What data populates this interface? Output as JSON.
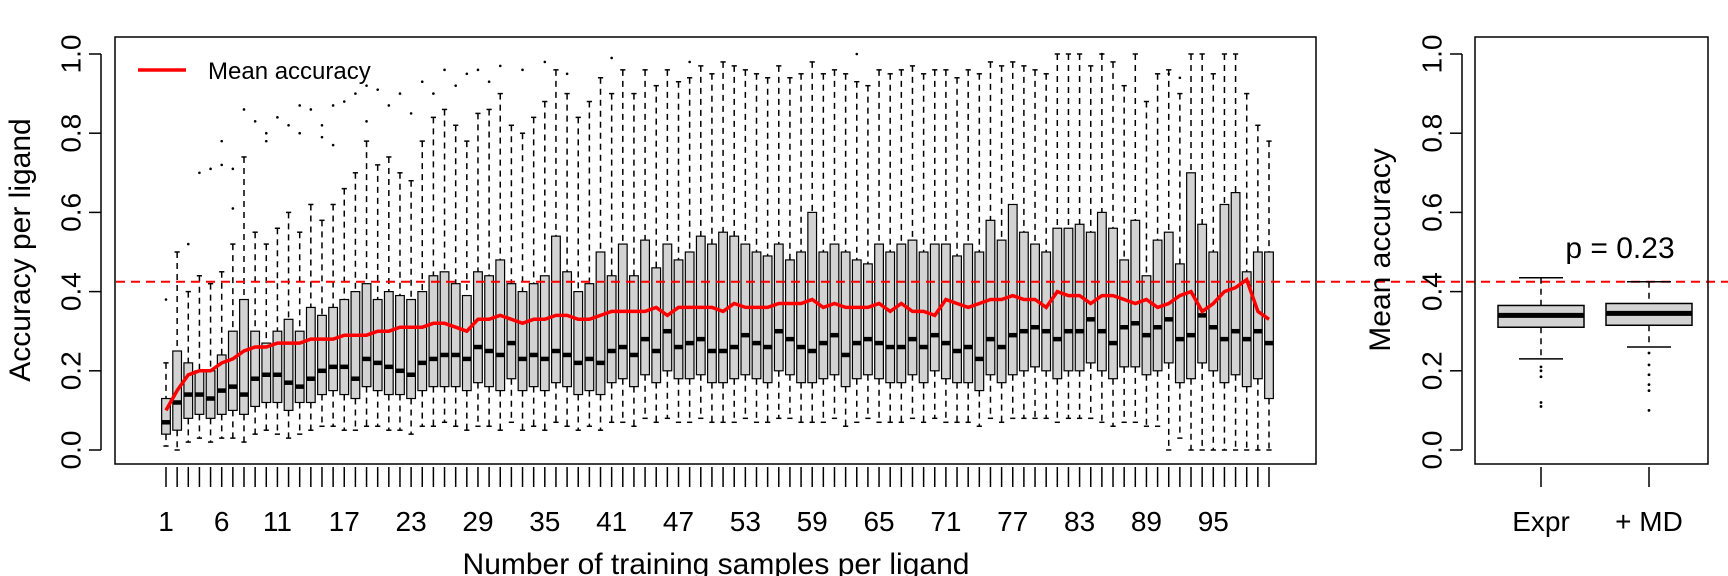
{
  "colors": {
    "box_fill": "#d3d3d3",
    "mean_line": "#ff0000",
    "ref_line": "#ff0000",
    "outline": "#000000"
  },
  "chart_data": [
    {
      "type": "box",
      "title": "",
      "xlabel": "Number of training samples per ligand",
      "ylabel": "Accuracy per ligand",
      "ylim": [
        0,
        1
      ],
      "yticks": [
        "0.0",
        "0.2",
        "0.4",
        "0.6",
        "0.8",
        "1.0"
      ],
      "xtick_labels": [
        "1",
        "6",
        "11",
        "17",
        "23",
        "29",
        "35",
        "41",
        "47",
        "53",
        "59",
        "65",
        "71",
        "77",
        "83",
        "89",
        "95"
      ],
      "x_range": [
        1,
        100
      ],
      "reference_line_y": 0.425,
      "legend": {
        "label": "Mean accuracy",
        "position": "top-left"
      },
      "medians": [
        0.07,
        0.12,
        0.14,
        0.14,
        0.13,
        0.15,
        0.16,
        0.14,
        0.18,
        0.19,
        0.19,
        0.17,
        0.16,
        0.18,
        0.2,
        0.21,
        0.21,
        0.18,
        0.23,
        0.22,
        0.21,
        0.2,
        0.19,
        0.22,
        0.23,
        0.24,
        0.24,
        0.23,
        0.26,
        0.25,
        0.24,
        0.27,
        0.23,
        0.24,
        0.23,
        0.25,
        0.24,
        0.22,
        0.23,
        0.22,
        0.25,
        0.26,
        0.24,
        0.28,
        0.25,
        0.3,
        0.26,
        0.27,
        0.28,
        0.25,
        0.25,
        0.26,
        0.29,
        0.27,
        0.26,
        0.3,
        0.28,
        0.26,
        0.25,
        0.27,
        0.29,
        0.24,
        0.27,
        0.28,
        0.27,
        0.26,
        0.26,
        0.28,
        0.26,
        0.29,
        0.27,
        0.25,
        0.26,
        0.23,
        0.28,
        0.26,
        0.29,
        0.3,
        0.31,
        0.3,
        0.28,
        0.3,
        0.3,
        0.33,
        0.3,
        0.27,
        0.31,
        0.32,
        0.29,
        0.31,
        0.33,
        0.28,
        0.29,
        0.34,
        0.31,
        0.28,
        0.3,
        0.28,
        0.3,
        0.27
      ],
      "q1": [
        0.04,
        0.05,
        0.08,
        0.09,
        0.08,
        0.09,
        0.1,
        0.09,
        0.11,
        0.12,
        0.12,
        0.1,
        0.12,
        0.12,
        0.14,
        0.15,
        0.14,
        0.13,
        0.16,
        0.15,
        0.14,
        0.14,
        0.13,
        0.15,
        0.16,
        0.16,
        0.16,
        0.15,
        0.17,
        0.16,
        0.15,
        0.18,
        0.15,
        0.16,
        0.15,
        0.17,
        0.16,
        0.14,
        0.15,
        0.14,
        0.17,
        0.18,
        0.16,
        0.19,
        0.17,
        0.2,
        0.18,
        0.18,
        0.19,
        0.17,
        0.17,
        0.18,
        0.19,
        0.18,
        0.17,
        0.2,
        0.19,
        0.17,
        0.17,
        0.18,
        0.19,
        0.16,
        0.18,
        0.19,
        0.18,
        0.17,
        0.17,
        0.19,
        0.17,
        0.2,
        0.18,
        0.17,
        0.17,
        0.15,
        0.19,
        0.17,
        0.19,
        0.2,
        0.21,
        0.2,
        0.18,
        0.2,
        0.2,
        0.22,
        0.2,
        0.18,
        0.21,
        0.21,
        0.19,
        0.2,
        0.22,
        0.17,
        0.18,
        0.22,
        0.2,
        0.17,
        0.19,
        0.16,
        0.18,
        0.13
      ],
      "q3": [
        0.13,
        0.25,
        0.22,
        0.2,
        0.2,
        0.24,
        0.3,
        0.38,
        0.3,
        0.27,
        0.3,
        0.33,
        0.3,
        0.36,
        0.34,
        0.36,
        0.38,
        0.4,
        0.42,
        0.38,
        0.4,
        0.39,
        0.38,
        0.4,
        0.44,
        0.45,
        0.42,
        0.39,
        0.45,
        0.44,
        0.48,
        0.42,
        0.4,
        0.42,
        0.44,
        0.54,
        0.45,
        0.4,
        0.42,
        0.5,
        0.44,
        0.52,
        0.44,
        0.53,
        0.46,
        0.52,
        0.48,
        0.5,
        0.54,
        0.52,
        0.55,
        0.54,
        0.52,
        0.5,
        0.49,
        0.52,
        0.48,
        0.5,
        0.6,
        0.5,
        0.52,
        0.5,
        0.48,
        0.47,
        0.52,
        0.5,
        0.52,
        0.53,
        0.5,
        0.52,
        0.52,
        0.49,
        0.52,
        0.5,
        0.58,
        0.53,
        0.62,
        0.55,
        0.52,
        0.5,
        0.56,
        0.56,
        0.57,
        0.55,
        0.6,
        0.56,
        0.48,
        0.58,
        0.44,
        0.53,
        0.55,
        0.47,
        0.7,
        0.57,
        0.5,
        0.62,
        0.65,
        0.45,
        0.5,
        0.5
      ],
      "whisker_low": [
        0.01,
        0.0,
        0.02,
        0.03,
        0.02,
        0.03,
        0.03,
        0.02,
        0.04,
        0.05,
        0.04,
        0.03,
        0.04,
        0.05,
        0.06,
        0.06,
        0.05,
        0.05,
        0.06,
        0.06,
        0.05,
        0.05,
        0.04,
        0.06,
        0.06,
        0.07,
        0.06,
        0.05,
        0.06,
        0.06,
        0.05,
        0.07,
        0.05,
        0.06,
        0.05,
        0.07,
        0.06,
        0.05,
        0.06,
        0.05,
        0.07,
        0.07,
        0.06,
        0.08,
        0.07,
        0.08,
        0.07,
        0.07,
        0.08,
        0.07,
        0.07,
        0.07,
        0.08,
        0.07,
        0.07,
        0.08,
        0.08,
        0.07,
        0.07,
        0.07,
        0.08,
        0.06,
        0.07,
        0.08,
        0.07,
        0.07,
        0.07,
        0.08,
        0.07,
        0.08,
        0.07,
        0.07,
        0.07,
        0.06,
        0.08,
        0.07,
        0.08,
        0.08,
        0.08,
        0.08,
        0.07,
        0.08,
        0.08,
        0.08,
        0.07,
        0.06,
        0.07,
        0.07,
        0.06,
        0.06,
        0.0,
        0.03,
        0.0,
        0.0,
        0.0,
        0.0,
        0.0,
        0.0,
        0.0,
        0.0
      ],
      "whisker_high": [
        0.22,
        0.5,
        0.4,
        0.44,
        0.42,
        0.45,
        0.52,
        0.74,
        0.55,
        0.52,
        0.56,
        0.6,
        0.55,
        0.62,
        0.58,
        0.62,
        0.66,
        0.7,
        0.78,
        0.72,
        0.74,
        0.7,
        0.68,
        0.78,
        0.84,
        0.86,
        0.82,
        0.78,
        0.85,
        0.86,
        0.9,
        0.82,
        0.8,
        0.84,
        0.88,
        0.96,
        0.9,
        0.84,
        0.88,
        0.94,
        0.9,
        0.96,
        0.9,
        0.96,
        0.92,
        0.96,
        0.93,
        0.94,
        0.97,
        0.95,
        0.98,
        0.97,
        0.96,
        0.95,
        0.94,
        0.97,
        0.94,
        0.95,
        0.98,
        0.95,
        0.96,
        0.95,
        0.93,
        0.92,
        0.96,
        0.95,
        0.96,
        0.97,
        0.95,
        0.96,
        0.96,
        0.94,
        0.96,
        0.95,
        0.98,
        0.97,
        0.98,
        0.97,
        0.96,
        0.95,
        1.0,
        1.0,
        1.0,
        0.97,
        1.0,
        0.98,
        0.92,
        1.0,
        0.88,
        0.95,
        0.96,
        0.9,
        1.0,
        1.0,
        0.95,
        1.0,
        1.0,
        0.9,
        0.82,
        0.78
      ],
      "mean_accuracy": [
        0.1,
        0.15,
        0.19,
        0.2,
        0.2,
        0.22,
        0.23,
        0.25,
        0.26,
        0.26,
        0.27,
        0.27,
        0.27,
        0.28,
        0.28,
        0.28,
        0.29,
        0.29,
        0.29,
        0.3,
        0.3,
        0.31,
        0.31,
        0.31,
        0.32,
        0.32,
        0.31,
        0.3,
        0.33,
        0.33,
        0.34,
        0.33,
        0.32,
        0.33,
        0.33,
        0.34,
        0.34,
        0.33,
        0.33,
        0.34,
        0.35,
        0.35,
        0.35,
        0.35,
        0.36,
        0.34,
        0.36,
        0.36,
        0.36,
        0.36,
        0.35,
        0.37,
        0.36,
        0.36,
        0.36,
        0.37,
        0.37,
        0.37,
        0.38,
        0.36,
        0.37,
        0.36,
        0.36,
        0.36,
        0.37,
        0.35,
        0.37,
        0.35,
        0.35,
        0.34,
        0.38,
        0.37,
        0.36,
        0.37,
        0.38,
        0.38,
        0.39,
        0.38,
        0.38,
        0.36,
        0.4,
        0.39,
        0.39,
        0.37,
        0.39,
        0.39,
        0.38,
        0.37,
        0.38,
        0.36,
        0.37,
        0.39,
        0.4,
        0.35,
        0.37,
        0.4,
        0.41,
        0.43,
        0.35,
        0.33
      ],
      "outliers": [
        [
          1,
          0.38
        ],
        [
          3,
          0.52
        ],
        [
          4,
          0.7
        ],
        [
          5,
          0.71
        ],
        [
          6,
          0.78
        ],
        [
          6,
          0.72
        ],
        [
          7,
          0.71
        ],
        [
          7,
          0.61
        ],
        [
          8,
          0.86
        ],
        [
          9,
          0.83
        ],
        [
          10,
          0.78
        ],
        [
          10,
          0.8
        ],
        [
          11,
          0.84
        ],
        [
          12,
          0.82
        ],
        [
          13,
          0.87
        ],
        [
          13,
          0.8
        ],
        [
          14,
          0.86
        ],
        [
          15,
          0.82
        ],
        [
          15,
          0.79
        ],
        [
          16,
          0.87
        ],
        [
          16,
          0.77
        ],
        [
          17,
          0.88
        ],
        [
          18,
          0.9
        ],
        [
          19,
          0.92
        ],
        [
          19,
          0.83
        ],
        [
          20,
          0.91
        ],
        [
          21,
          0.87
        ],
        [
          22,
          0.9
        ],
        [
          23,
          0.85
        ],
        [
          24,
          0.93
        ],
        [
          25,
          0.9
        ],
        [
          26,
          0.96
        ],
        [
          27,
          0.92
        ],
        [
          28,
          0.95
        ],
        [
          29,
          0.96
        ],
        [
          30,
          0.93
        ],
        [
          31,
          0.97
        ],
        [
          33,
          0.96
        ],
        [
          35,
          0.98
        ],
        [
          37,
          0.95
        ],
        [
          41,
          0.99
        ],
        [
          48,
          0.98
        ],
        [
          63,
          1.0
        ],
        [
          85,
          1.0
        ],
        [
          91,
          0.95
        ],
        [
          92,
          0.94
        ]
      ]
    },
    {
      "type": "box",
      "title": "",
      "xlabel": "",
      "ylabel": "Mean accuracy",
      "ylim": [
        0,
        1
      ],
      "yticks": [
        "0.0",
        "0.2",
        "0.4",
        "0.6",
        "0.8",
        "1.0"
      ],
      "annotation": "p = 0.23",
      "categories": [
        "Expr",
        "+ MD"
      ],
      "boxes": [
        {
          "name": "Expr",
          "whisker_low": 0.23,
          "q1": 0.31,
          "median": 0.34,
          "q3": 0.365,
          "whisker_high": 0.435,
          "outliers": [
            0.21,
            0.2,
            0.185,
            0.12,
            0.11
          ]
        },
        {
          "name": "+ MD",
          "whisker_low": 0.26,
          "q1": 0.315,
          "median": 0.345,
          "q3": 0.37,
          "whisker_high": 0.425,
          "outliers": [
            0.245,
            0.215,
            0.19,
            0.165,
            0.15,
            0.1
          ]
        }
      ]
    }
  ]
}
